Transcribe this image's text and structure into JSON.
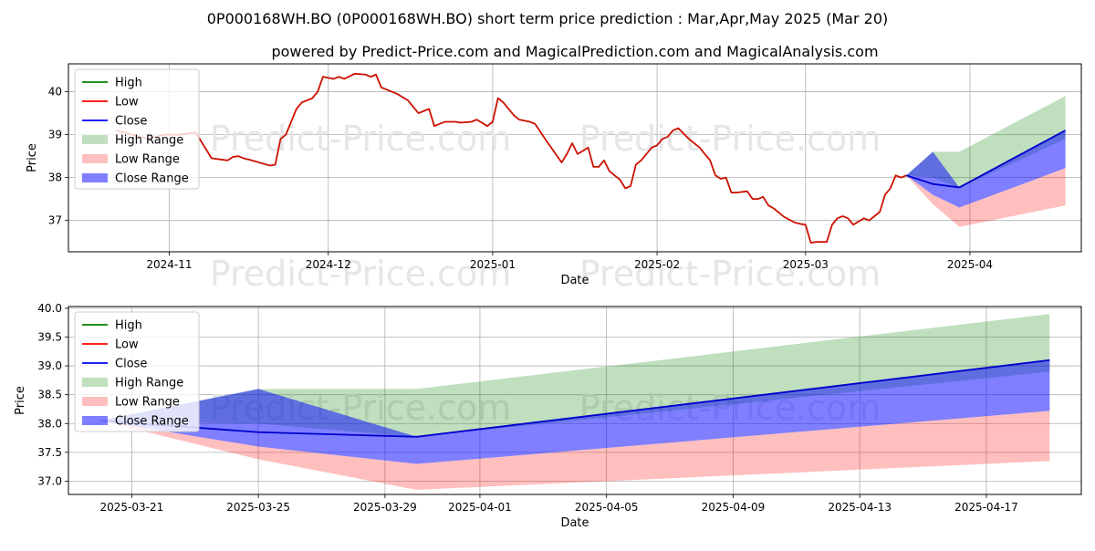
{
  "chart_data": [
    {
      "type": "line",
      "title": "0P000168WH.BO (0P000168WH.BO) short term price prediction : Mar,Apr,May 2025 (Mar 20)",
      "subtitle": "powered by Predict-Price.com and MagicalPrediction.com and MagicalAnalysis.com",
      "watermark": "Predict-Price.com",
      "xlabel": "Date",
      "ylabel": "Price",
      "xlim": [
        "2024-10-13",
        "2025-04-22"
      ],
      "ylim": [
        36.27,
        40.65
      ],
      "xticks": [
        {
          "date": "2024-11-01",
          "label": "2024-11"
        },
        {
          "date": "2024-12-01",
          "label": "2024-12"
        },
        {
          "date": "2025-01-01",
          "label": "2025-01"
        },
        {
          "date": "2025-02-01",
          "label": "2025-02"
        },
        {
          "date": "2025-03-01",
          "label": "2025-03"
        },
        {
          "date": "2025-04-01",
          "label": "2025-04"
        }
      ],
      "yticks": [
        37,
        38,
        39,
        40
      ],
      "ytick_labels": [
        "37",
        "38",
        "39",
        "40"
      ],
      "grid": true,
      "legend_position": "upper-left",
      "legend": [
        {
          "label": "High",
          "kind": "line",
          "color": "#008000"
        },
        {
          "label": "Low",
          "kind": "line",
          "color": "#ff0000"
        },
        {
          "label": "Close",
          "kind": "line",
          "color": "#0000ff"
        },
        {
          "label": "High Range",
          "kind": "fill",
          "color": "#008000",
          "opacity": 0.25
        },
        {
          "label": "Low Range",
          "kind": "fill",
          "color": "#ff0000",
          "opacity": 0.25
        },
        {
          "label": "Close Range",
          "kind": "fill",
          "color": "#0000ff",
          "opacity": 0.5
        }
      ],
      "history": {
        "color": "#cc1100",
        "dates": [
          "2024-10-22",
          "2024-10-25",
          "2024-10-28",
          "2024-10-31",
          "2024-11-03",
          "2024-11-06",
          "2024-11-09",
          "2024-11-12",
          "2024-11-13",
          "2024-11-14",
          "2024-11-15",
          "2024-11-16",
          "2024-11-20",
          "2024-11-21",
          "2024-11-22",
          "2024-11-23",
          "2024-11-25",
          "2024-11-26",
          "2024-11-28",
          "2024-11-29",
          "2024-11-30",
          "2024-12-02",
          "2024-12-03",
          "2024-12-04",
          "2024-12-06",
          "2024-12-08",
          "2024-12-09",
          "2024-12-10",
          "2024-12-11",
          "2024-12-12",
          "2024-12-14",
          "2024-12-16",
          "2024-12-18",
          "2024-12-19",
          "2024-12-20",
          "2024-12-21",
          "2024-12-22",
          "2024-12-23",
          "2024-12-25",
          "2024-12-26",
          "2024-12-28",
          "2024-12-29",
          "2024-12-31",
          "2025-01-01",
          "2025-01-02",
          "2025-01-03",
          "2025-01-05",
          "2025-01-06",
          "2025-01-08",
          "2025-01-09",
          "2025-01-11",
          "2025-01-14",
          "2025-01-15",
          "2025-01-16",
          "2025-01-17",
          "2025-01-18",
          "2025-01-19",
          "2025-01-20",
          "2025-01-21",
          "2025-01-22",
          "2025-01-23",
          "2025-01-25",
          "2025-01-26",
          "2025-01-27",
          "2025-01-28",
          "2025-01-29",
          "2025-01-31",
          "2025-02-01",
          "2025-02-02",
          "2025-02-03",
          "2025-02-04",
          "2025-02-05",
          "2025-02-07",
          "2025-02-08",
          "2025-02-09",
          "2025-02-10",
          "2025-02-11",
          "2025-02-12",
          "2025-02-13",
          "2025-02-14",
          "2025-02-15",
          "2025-02-16",
          "2025-02-18",
          "2025-02-19",
          "2025-02-20",
          "2025-02-21",
          "2025-02-22",
          "2025-02-23",
          "2025-02-24",
          "2025-02-25",
          "2025-02-27",
          "2025-02-28",
          "2025-03-01",
          "2025-03-02",
          "2025-03-03",
          "2025-03-04",
          "2025-03-05",
          "2025-03-06",
          "2025-03-07",
          "2025-03-08",
          "2025-03-09",
          "2025-03-10",
          "2025-03-12",
          "2025-03-13",
          "2025-03-15",
          "2025-03-16",
          "2025-03-17",
          "2025-03-18",
          "2025-03-19",
          "2025-03-20"
        ],
        "values": [
          39.1,
          39.0,
          38.9,
          39.0,
          39.0,
          39.05,
          38.45,
          38.4,
          38.48,
          38.5,
          38.45,
          38.42,
          38.28,
          38.3,
          38.9,
          39.0,
          39.6,
          39.75,
          39.85,
          40.0,
          40.35,
          40.3,
          40.35,
          40.3,
          40.42,
          40.4,
          40.35,
          40.4,
          40.1,
          40.05,
          39.95,
          39.8,
          39.5,
          39.55,
          39.6,
          39.2,
          39.25,
          39.3,
          39.3,
          39.28,
          39.3,
          39.35,
          39.2,
          39.3,
          39.85,
          39.75,
          39.45,
          39.35,
          39.3,
          39.25,
          38.88,
          38.35,
          38.55,
          38.8,
          38.55,
          38.62,
          38.7,
          38.25,
          38.25,
          38.4,
          38.15,
          37.95,
          37.75,
          37.8,
          38.3,
          38.4,
          38.7,
          38.75,
          38.9,
          38.95,
          39.1,
          39.15,
          38.9,
          38.8,
          38.7,
          38.55,
          38.4,
          38.05,
          37.97,
          38.0,
          37.65,
          37.65,
          37.68,
          37.5,
          37.5,
          37.55,
          37.35,
          37.28,
          37.18,
          37.08,
          36.95,
          36.92,
          36.9,
          36.48,
          36.5,
          36.5,
          36.5,
          36.9,
          37.05,
          37.1,
          37.05,
          36.9,
          37.05,
          37.0,
          37.2,
          37.6,
          37.75,
          38.05,
          38.0,
          38.05
        ]
      }
    },
    {
      "type": "line",
      "xlabel": "Date",
      "ylabel": "Price",
      "xlim": [
        "2025-03-19",
        "2025-04-20"
      ],
      "ylim": [
        36.77,
        40.03
      ],
      "xticks": [
        {
          "date": "2025-03-21",
          "label": "2025-03-21"
        },
        {
          "date": "2025-03-25",
          "label": "2025-03-25"
        },
        {
          "date": "2025-03-29",
          "label": "2025-03-29"
        },
        {
          "date": "2025-04-01",
          "label": "2025-04-01"
        },
        {
          "date": "2025-04-05",
          "label": "2025-04-05"
        },
        {
          "date": "2025-04-09",
          "label": "2025-04-09"
        },
        {
          "date": "2025-04-13",
          "label": "2025-04-13"
        },
        {
          "date": "2025-04-17",
          "label": "2025-04-17"
        }
      ],
      "yticks": [
        37.0,
        37.5,
        38.0,
        38.5,
        39.0,
        39.5,
        40.0
      ],
      "ytick_labels": [
        "37.0",
        "37.5",
        "38.0",
        "38.5",
        "39.0",
        "39.5",
        "40.0"
      ],
      "grid": true,
      "legend_position": "upper-left"
    }
  ],
  "forecast": {
    "dates": [
      "2025-03-20",
      "2025-03-25",
      "2025-03-30",
      "2025-04-19"
    ],
    "close": [
      38.05,
      37.85,
      37.77,
      39.1
    ],
    "high_range": {
      "upper": [
        38.05,
        38.6,
        38.6,
        39.9
      ],
      "lower": [
        38.05,
        38.0,
        37.77,
        38.9
      ]
    },
    "low_range": {
      "upper": [
        38.05,
        37.6,
        37.3,
        38.22
      ],
      "lower": [
        38.05,
        37.38,
        36.85,
        37.35
      ]
    },
    "close_range": {
      "upper": [
        38.05,
        38.6,
        37.77,
        39.1
      ],
      "lower": [
        38.05,
        37.6,
        37.3,
        38.22
      ]
    },
    "close_color": "#0000cc"
  }
}
